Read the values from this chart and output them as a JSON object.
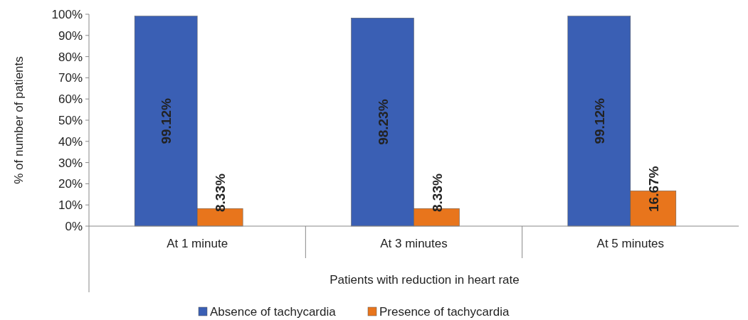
{
  "chart_data": {
    "type": "bar",
    "xlabel": "Patients with reduction in heart rate",
    "ylabel": "% of number of patients",
    "categories": [
      "At 1 minute",
      "At 3 minutes",
      "At 5 minutes"
    ],
    "series": [
      {
        "name": "Absence of tachycardia",
        "color": "#3a5fb4",
        "values": [
          99.12,
          98.23,
          99.12
        ]
      },
      {
        "name": "Presence of tachycardia",
        "color": "#e8751c",
        "values": [
          8.33,
          8.33,
          16.67
        ]
      }
    ],
    "ylim": [
      0,
      100
    ],
    "yticks": [
      {
        "value": 0,
        "label": "0%"
      },
      {
        "value": 10,
        "label": "10%"
      },
      {
        "value": 20,
        "label": "20%"
      },
      {
        "value": 30,
        "label": "30%"
      },
      {
        "value": 40,
        "label": "40%"
      },
      {
        "value": 50,
        "label": "50%"
      },
      {
        "value": 60,
        "label": "60%"
      },
      {
        "value": 70,
        "label": "70%"
      },
      {
        "value": 80,
        "label": "80%"
      },
      {
        "value": 90,
        "label": "90%"
      },
      {
        "value": 100,
        "label": "100%"
      }
    ],
    "value_labels": [
      [
        "99.12%",
        "98.23%",
        "99.12%"
      ],
      [
        "8.33%",
        "8.33%",
        "16.67%"
      ]
    ],
    "grid": false,
    "legend": "bottom"
  }
}
